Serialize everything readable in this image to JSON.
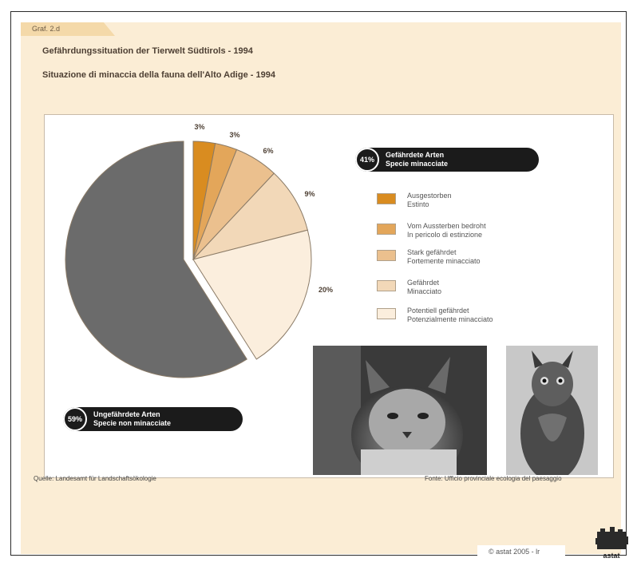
{
  "figure_label": "Graf. 2.d",
  "copyright": "© astat 2005 - lr",
  "logo_text": "astat",
  "source": {
    "de": "Quelle: Landesamt für Landschaftsökologie",
    "it": "Fonte: Ufficio provinciale ecologia del paesaggio"
  },
  "colors": {
    "ausgestorben": "#d98c20",
    "vom_aussterben": "#e3a65a",
    "stark": "#ebc08e",
    "gefaehrdet": "#f2d8b8",
    "potentiell": "#fbeedd",
    "ungefaehrdet": "#6b6b6b"
  },
  "chart_data": {
    "type": "pie",
    "title": "Gefährdungssituation der Tierwelt Südtirols - 1994",
    "subtitle": "Situazione di minaccia della fauna dell'Alto Adige - 1994",
    "series": [
      {
        "label_de": "Ausgestorben",
        "label_it": "Estinto",
        "value": 3,
        "label": "3%",
        "color": "#d98c20"
      },
      {
        "label_de": "Vom Aussterben bedroht",
        "label_it": "In pericolo di estinzione",
        "value": 3,
        "label": "3%",
        "color": "#e3a65a"
      },
      {
        "label_de": "Stark gefährdet",
        "label_it": "Fortemente minacciato",
        "value": 6,
        "label": "6%",
        "color": "#ebc08e"
      },
      {
        "label_de": "Gefährdet",
        "label_it": "Minacciato",
        "value": 9,
        "label": "9%",
        "color": "#f2d8b8"
      },
      {
        "label_de": "Potentiell gefährdet",
        "label_it": "Potenzialmente minacciato",
        "value": 20,
        "label": "20%",
        "color": "#fbeedd"
      },
      {
        "label_de": "Ungefährdete Arten",
        "label_it": "Specie non minacciate",
        "value": 59,
        "label": "59%",
        "color": "#6b6b6b"
      }
    ],
    "groups": [
      {
        "percent": "41%",
        "label_de": "Gefährdete Arten",
        "label_it": "Specie minacciate"
      },
      {
        "percent": "59%",
        "label_de": "Ungefährdete Arten",
        "label_it": "Specie non minacciate"
      }
    ]
  }
}
